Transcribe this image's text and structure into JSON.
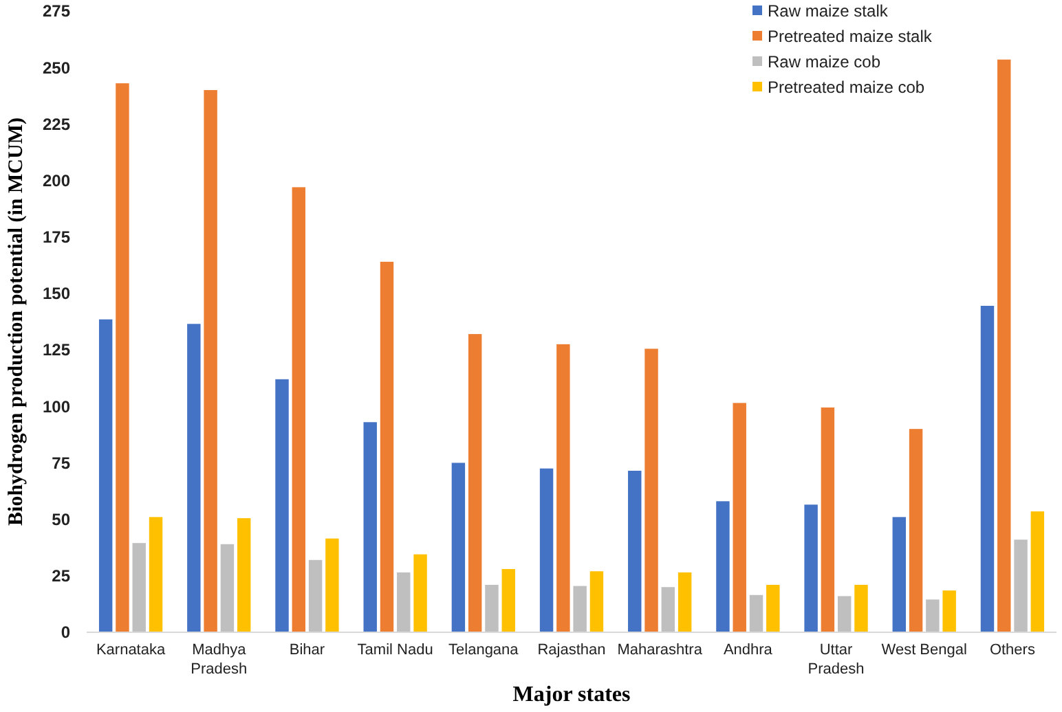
{
  "chart_data": {
    "type": "bar",
    "xlabel": "Major states",
    "ylabel": "Biohydrogen production potential (in MCUM)",
    "categories": [
      "Karnataka",
      "Madhya Pradesh",
      "Bihar",
      "Tamil Nadu",
      "Telangana",
      "Rajasthan",
      "Maharashtra",
      "Andhra",
      "Uttar Pradesh",
      "West Bengal",
      "Others"
    ],
    "series": [
      {
        "name": "Raw maize stalk",
        "color": "#4472c4",
        "values": [
          138.5,
          136.5,
          112,
          93,
          75,
          72.5,
          71.5,
          58,
          56.5,
          51,
          144.5
        ]
      },
      {
        "name": "Pretreated maize stalk",
        "color": "#ed7d31",
        "values": [
          243,
          240,
          197,
          164,
          132,
          127.5,
          125.5,
          101.5,
          99.5,
          90,
          253.5
        ]
      },
      {
        "name": "Raw maize cob",
        "color": "#bfbfbf",
        "values": [
          39.5,
          39,
          32,
          26.5,
          21,
          20.5,
          20,
          16.5,
          16,
          14.5,
          41
        ]
      },
      {
        "name": "Pretreated maize cob",
        "color": "#ffc000",
        "values": [
          51,
          50.5,
          41.5,
          34.5,
          28,
          27,
          26.5,
          21,
          21,
          18.5,
          53.5
        ]
      }
    ],
    "ylim": [
      0,
      275
    ],
    "yticks": [
      0,
      25,
      50,
      75,
      100,
      125,
      150,
      175,
      200,
      225,
      250,
      275
    ],
    "grid": false,
    "legend": "top right"
  }
}
